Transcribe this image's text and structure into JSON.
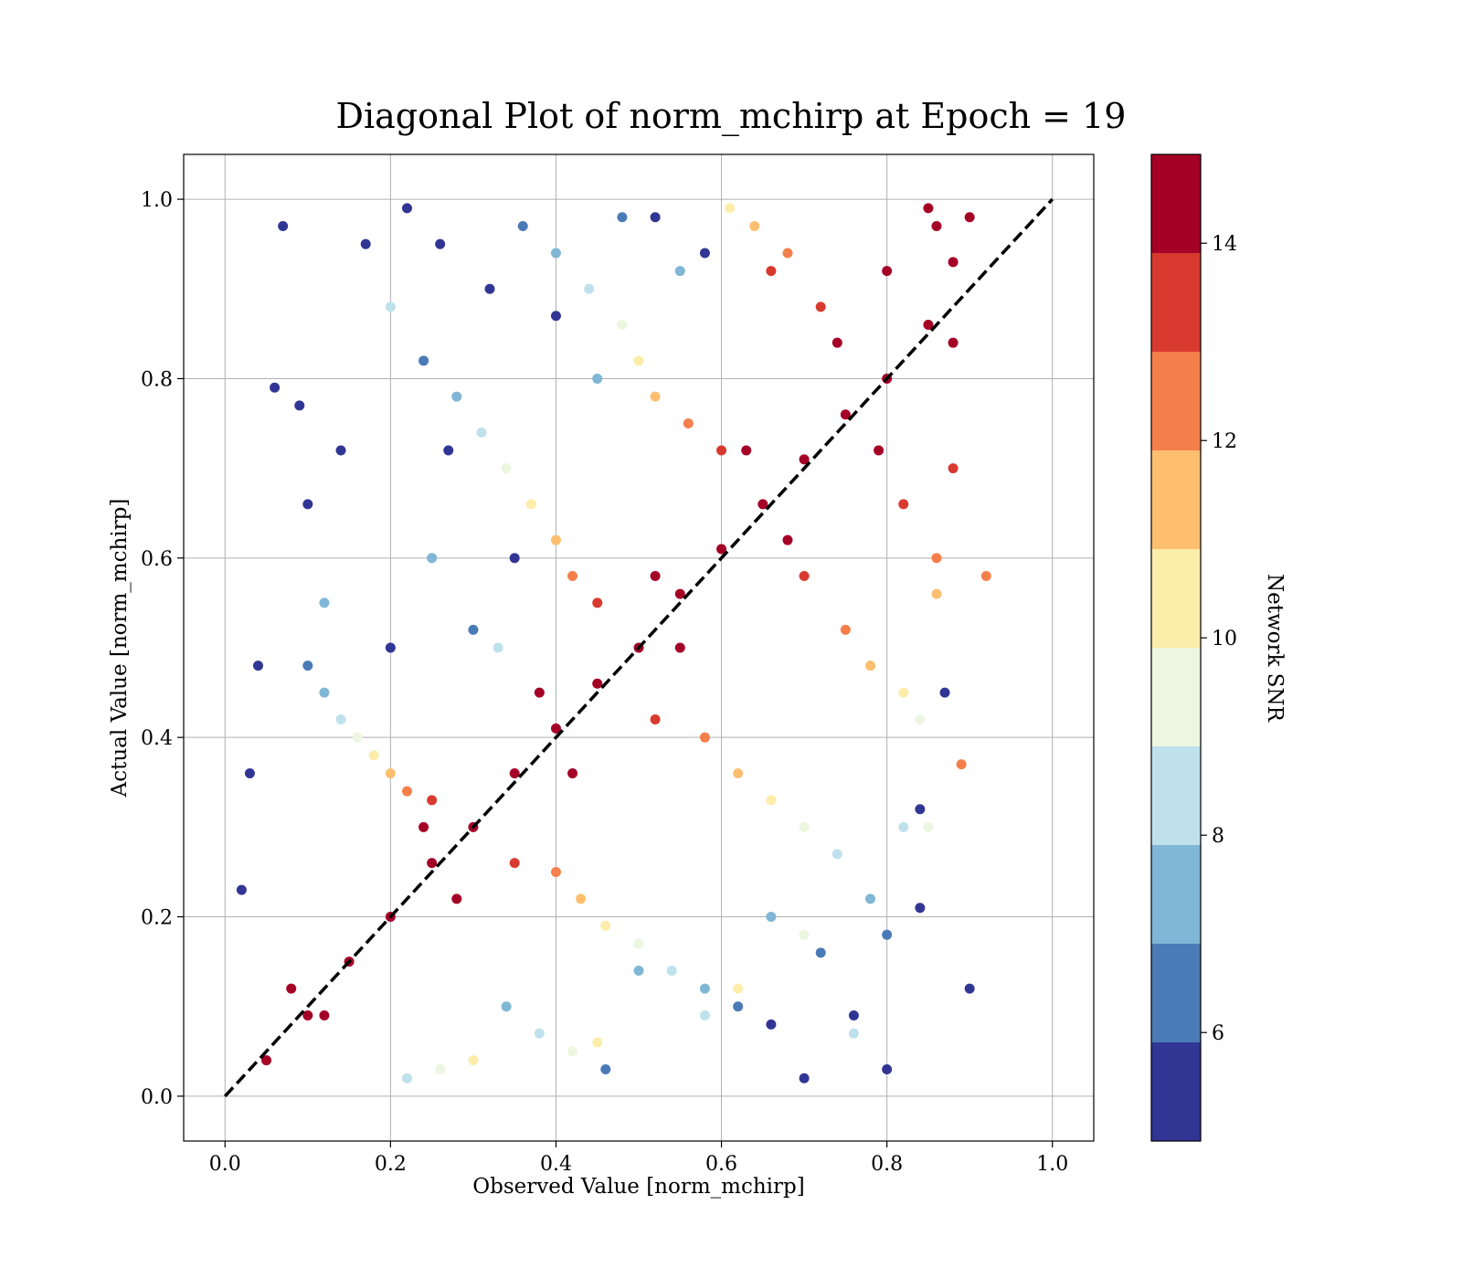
{
  "chart_data": {
    "type": "scatter",
    "title": "Diagonal Plot of norm_mchirp at Epoch = 19",
    "xlabel": "Observed Value [norm_mchirp]",
    "ylabel": "Actual Value [norm_mchirp]",
    "xlim": [
      -0.05,
      1.05
    ],
    "ylim": [
      -0.05,
      1.05
    ],
    "grid": true,
    "x_ticks": [
      "0.0",
      "0.2",
      "0.4",
      "0.6",
      "0.8",
      "1.0"
    ],
    "y_ticks": [
      "0.0",
      "0.2",
      "0.4",
      "0.6",
      "0.8",
      "1.0"
    ],
    "reference_line": {
      "style": "dashed",
      "color": "#000000",
      "from": [
        0,
        0
      ],
      "to": [
        1,
        1
      ]
    },
    "colorbar": {
      "label": "Network SNR",
      "range": [
        4.9,
        14.9
      ],
      "ticks": [
        "6",
        "8",
        "10",
        "12",
        "14"
      ],
      "bands": [
        {
          "from": 4.9,
          "to": 5.9,
          "color": "#313695"
        },
        {
          "from": 5.9,
          "to": 6.9,
          "color": "#4a7bb7"
        },
        {
          "from": 6.9,
          "to": 7.9,
          "color": "#80b6d6"
        },
        {
          "from": 7.9,
          "to": 8.9,
          "color": "#bfe1ec"
        },
        {
          "from": 8.9,
          "to": 9.9,
          "color": "#ecf6e1"
        },
        {
          "from": 9.9,
          "to": 10.9,
          "color": "#fdedaa"
        },
        {
          "from": 10.9,
          "to": 11.9,
          "color": "#fdbf6f"
        },
        {
          "from": 11.9,
          "to": 12.9,
          "color": "#f57f4b"
        },
        {
          "from": 12.9,
          "to": 13.9,
          "color": "#d93a2f"
        },
        {
          "from": 13.9,
          "to": 14.9,
          "color": "#a50026"
        }
      ]
    },
    "series": [
      {
        "color_by": "Network SNR",
        "points": [
          [
            0.05,
            0.04,
            14.5
          ],
          [
            0.1,
            0.09,
            14.5
          ],
          [
            0.15,
            0.15,
            14.5
          ],
          [
            0.2,
            0.2,
            14.5
          ],
          [
            0.25,
            0.26,
            14.5
          ],
          [
            0.3,
            0.3,
            14.5
          ],
          [
            0.35,
            0.36,
            14.5
          ],
          [
            0.4,
            0.41,
            14.5
          ],
          [
            0.45,
            0.46,
            14.5
          ],
          [
            0.5,
            0.5,
            14.5
          ],
          [
            0.55,
            0.56,
            14.5
          ],
          [
            0.6,
            0.61,
            14.5
          ],
          [
            0.65,
            0.66,
            14.5
          ],
          [
            0.7,
            0.71,
            14.5
          ],
          [
            0.75,
            0.76,
            14.5
          ],
          [
            0.8,
            0.8,
            14.5
          ],
          [
            0.85,
            0.86,
            14.5
          ],
          [
            0.88,
            0.93,
            14.5
          ],
          [
            0.86,
            0.97,
            14.5
          ],
          [
            0.9,
            0.98,
            14.5
          ],
          [
            0.12,
            0.09,
            14.4
          ],
          [
            0.28,
            0.22,
            14.4
          ],
          [
            0.42,
            0.36,
            14.4
          ],
          [
            0.55,
            0.5,
            14.4
          ],
          [
            0.68,
            0.62,
            14.4
          ],
          [
            0.79,
            0.72,
            14.4
          ],
          [
            0.88,
            0.84,
            14.4
          ],
          [
            0.08,
            0.12,
            14.4
          ],
          [
            0.24,
            0.3,
            14.4
          ],
          [
            0.38,
            0.45,
            14.4
          ],
          [
            0.52,
            0.58,
            14.4
          ],
          [
            0.63,
            0.72,
            14.4
          ],
          [
            0.74,
            0.84,
            14.4
          ],
          [
            0.8,
            0.92,
            14.4
          ],
          [
            0.85,
            0.99,
            14.4
          ],
          [
            0.35,
            0.26,
            13.4
          ],
          [
            0.52,
            0.42,
            13.4
          ],
          [
            0.7,
            0.58,
            13.4
          ],
          [
            0.82,
            0.66,
            13.4
          ],
          [
            0.88,
            0.7,
            13.4
          ],
          [
            0.25,
            0.33,
            13.4
          ],
          [
            0.45,
            0.55,
            13.4
          ],
          [
            0.6,
            0.72,
            13.4
          ],
          [
            0.72,
            0.88,
            13.4
          ],
          [
            0.66,
            0.92,
            13.4
          ],
          [
            0.4,
            0.25,
            12.4
          ],
          [
            0.58,
            0.4,
            12.4
          ],
          [
            0.75,
            0.52,
            12.4
          ],
          [
            0.86,
            0.6,
            12.4
          ],
          [
            0.22,
            0.34,
            12.4
          ],
          [
            0.42,
            0.58,
            12.4
          ],
          [
            0.56,
            0.75,
            12.4
          ],
          [
            0.68,
            0.94,
            12.4
          ],
          [
            0.92,
            0.58,
            12.4
          ],
          [
            0.89,
            0.37,
            12.4
          ],
          [
            0.43,
            0.22,
            11.4
          ],
          [
            0.62,
            0.36,
            11.4
          ],
          [
            0.78,
            0.48,
            11.4
          ],
          [
            0.2,
            0.36,
            11.4
          ],
          [
            0.4,
            0.62,
            11.4
          ],
          [
            0.52,
            0.78,
            11.4
          ],
          [
            0.64,
            0.97,
            11.4
          ],
          [
            0.86,
            0.56,
            11.4
          ],
          [
            0.46,
            0.19,
            10.4
          ],
          [
            0.66,
            0.33,
            10.4
          ],
          [
            0.82,
            0.45,
            10.4
          ],
          [
            0.18,
            0.38,
            10.4
          ],
          [
            0.37,
            0.66,
            10.4
          ],
          [
            0.5,
            0.82,
            10.4
          ],
          [
            0.61,
            0.99,
            10.4
          ],
          [
            0.3,
            0.04,
            10.4
          ],
          [
            0.45,
            0.06,
            10.4
          ],
          [
            0.62,
            0.12,
            10.4
          ],
          [
            0.5,
            0.17,
            9.4
          ],
          [
            0.7,
            0.3,
            9.4
          ],
          [
            0.84,
            0.42,
            9.4
          ],
          [
            0.16,
            0.4,
            9.4
          ],
          [
            0.34,
            0.7,
            9.4
          ],
          [
            0.48,
            0.86,
            9.4
          ],
          [
            0.26,
            0.03,
            9.4
          ],
          [
            0.42,
            0.05,
            9.4
          ],
          [
            0.7,
            0.18,
            9.4
          ],
          [
            0.85,
            0.3,
            9.4
          ],
          [
            0.54,
            0.14,
            8.4
          ],
          [
            0.74,
            0.27,
            8.4
          ],
          [
            0.82,
            0.3,
            8.4
          ],
          [
            0.14,
            0.42,
            8.4
          ],
          [
            0.31,
            0.74,
            8.4
          ],
          [
            0.44,
            0.9,
            8.4
          ],
          [
            0.22,
            0.02,
            8.4
          ],
          [
            0.38,
            0.07,
            8.4
          ],
          [
            0.58,
            0.09,
            8.4
          ],
          [
            0.76,
            0.07,
            8.4
          ],
          [
            0.2,
            0.88,
            8.4
          ],
          [
            0.33,
            0.5,
            8.4
          ],
          [
            0.58,
            0.12,
            7.4
          ],
          [
            0.78,
            0.22,
            7.4
          ],
          [
            0.12,
            0.45,
            7.4
          ],
          [
            0.28,
            0.78,
            7.4
          ],
          [
            0.4,
            0.94,
            7.4
          ],
          [
            0.34,
            0.1,
            7.4
          ],
          [
            0.5,
            0.14,
            7.4
          ],
          [
            0.66,
            0.2,
            7.4
          ],
          [
            0.12,
            0.55,
            7.4
          ],
          [
            0.25,
            0.6,
            7.4
          ],
          [
            0.45,
            0.8,
            7.4
          ],
          [
            0.55,
            0.92,
            7.4
          ],
          [
            0.62,
            0.1,
            6.4
          ],
          [
            0.8,
            0.18,
            6.4
          ],
          [
            0.1,
            0.48,
            6.4
          ],
          [
            0.24,
            0.82,
            6.4
          ],
          [
            0.36,
            0.97,
            6.4
          ],
          [
            0.46,
            0.03,
            6.4
          ],
          [
            0.72,
            0.16,
            6.4
          ],
          [
            0.3,
            0.52,
            6.4
          ],
          [
            0.48,
            0.98,
            6.4
          ],
          [
            0.66,
            0.08,
            5.4
          ],
          [
            0.84,
            0.21,
            5.4
          ],
          [
            0.8,
            0.03,
            5.4
          ],
          [
            0.07,
            0.97,
            5.4
          ],
          [
            0.06,
            0.79,
            5.4
          ],
          [
            0.09,
            0.77,
            5.4
          ],
          [
            0.04,
            0.48,
            5.4
          ],
          [
            0.03,
            0.36,
            5.4
          ],
          [
            0.02,
            0.23,
            5.4
          ],
          [
            0.1,
            0.66,
            5.4
          ],
          [
            0.14,
            0.72,
            5.4
          ],
          [
            0.17,
            0.95,
            5.4
          ],
          [
            0.22,
            0.99,
            5.4
          ],
          [
            0.26,
            0.95,
            5.4
          ],
          [
            0.32,
            0.9,
            5.4
          ],
          [
            0.4,
            0.87,
            5.4
          ],
          [
            0.52,
            0.98,
            5.4
          ],
          [
            0.58,
            0.94,
            5.4
          ],
          [
            0.87,
            0.45,
            5.4
          ],
          [
            0.7,
            0.02,
            5.4
          ],
          [
            0.76,
            0.09,
            5.4
          ],
          [
            0.9,
            0.12,
            5.4
          ],
          [
            0.84,
            0.32,
            5.4
          ],
          [
            0.27,
            0.72,
            5.4
          ],
          [
            0.35,
            0.6,
            5.4
          ],
          [
            0.2,
            0.5,
            5.4
          ]
        ]
      }
    ]
  }
}
